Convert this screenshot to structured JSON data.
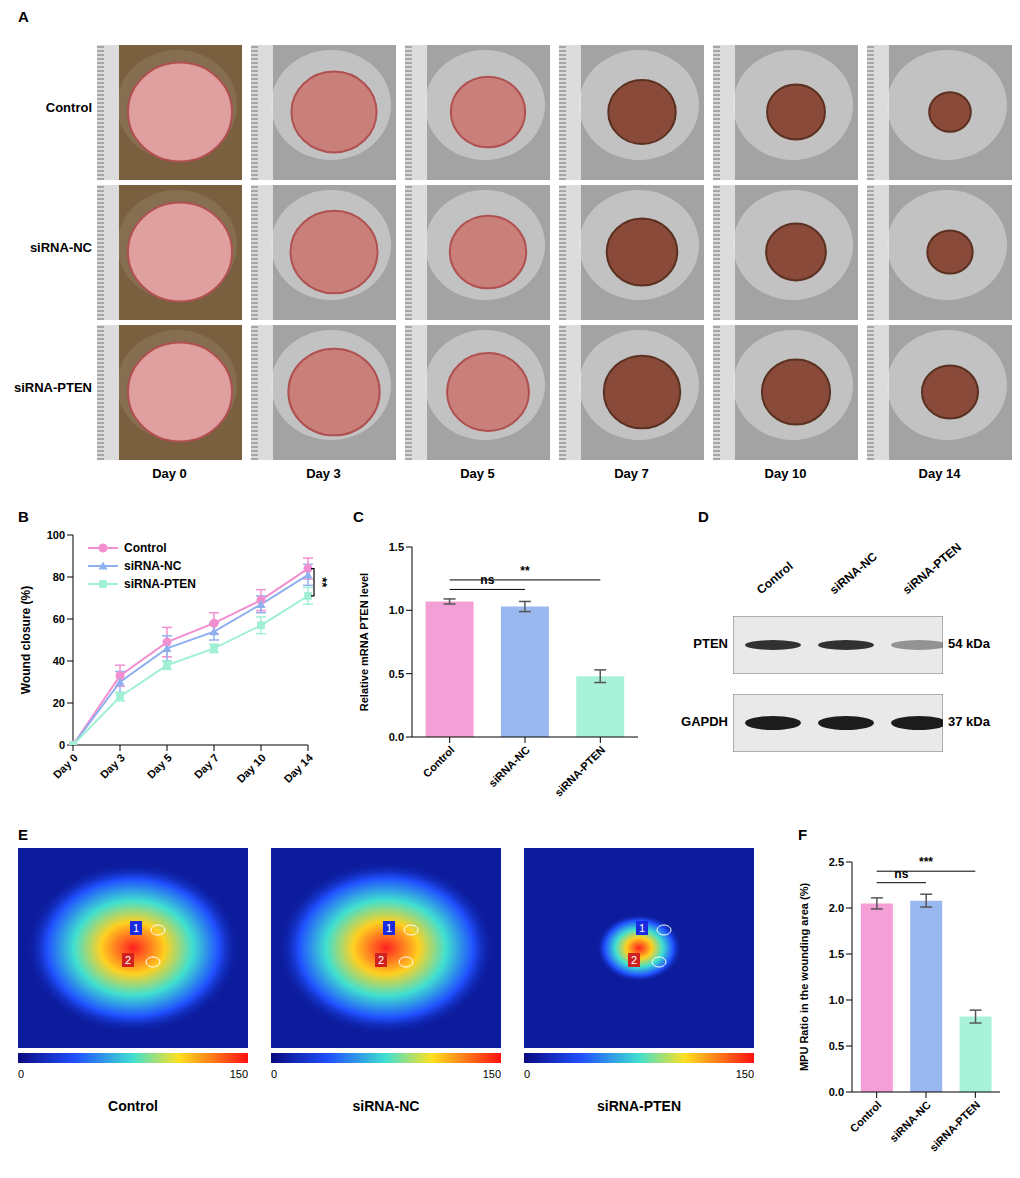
{
  "panel_labels": [
    "A",
    "B",
    "C",
    "D",
    "E",
    "F"
  ],
  "photo_grid": {
    "rows": [
      "Control",
      "siRNA-NC",
      "siRNA-PTEN"
    ],
    "columns": [
      "Day 0",
      "Day 3",
      "Day 5",
      "Day 7",
      "Day 10",
      "Day 14"
    ]
  },
  "chart_data": [
    {
      "type": "line",
      "categories": [
        "Day 0",
        "Day 3",
        "Day 5",
        "Day 7",
        "Day 10",
        "Day 14"
      ],
      "y_label": "Wound closure (%)",
      "ylim": [
        0,
        100
      ],
      "yticks": [
        0,
        20,
        40,
        60,
        80,
        100
      ],
      "legend": "upper left",
      "series": [
        {
          "name": "Control",
          "color": "#f28fd0",
          "marker": "circle",
          "values": [
            0,
            33,
            49,
            58,
            69,
            84
          ],
          "errors": [
            0,
            5,
            7,
            5,
            5,
            5
          ]
        },
        {
          "name": "siRNA-NC",
          "color": "#8fb0ee",
          "marker": "triangle",
          "values": [
            0,
            30,
            46,
            54,
            67,
            81
          ],
          "errors": [
            0,
            5,
            6,
            4,
            4,
            5
          ]
        },
        {
          "name": "siRNA-PTEN",
          "color": "#9ff0d4",
          "marker": "square",
          "values": [
            0,
            23,
            38,
            46,
            57,
            71
          ],
          "errors": [
            0,
            2,
            2,
            2,
            4,
            4
          ]
        }
      ],
      "annotations": [
        {
          "text": "**",
          "from": "Control",
          "to": "siRNA-PTEN"
        }
      ]
    },
    {
      "type": "bar",
      "categories": [
        "Control",
        "siRNA-NC",
        "siRNA-PTEN"
      ],
      "values": [
        1.07,
        1.03,
        0.48
      ],
      "errors": [
        0.02,
        0.04,
        0.05
      ],
      "colors": [
        "#f49fd6",
        "#9ab8f0",
        "#a9f2da"
      ],
      "y_label": "Relative mRNA PTEN level",
      "ylim": [
        0,
        1.5
      ],
      "yticks": [
        {
          "value": 0,
          "label": "0.0"
        },
        {
          "value": 0.5,
          "label": "0.5"
        },
        {
          "value": 1,
          "label": "1.0"
        },
        {
          "value": 1.5,
          "label": "1.5"
        }
      ],
      "annotations": [
        {
          "text": "ns",
          "from": "Control",
          "to": "siRNA-NC"
        },
        {
          "text": "**",
          "from": "Control",
          "to": "siRNA-PTEN"
        }
      ]
    },
    {
      "type": "bar",
      "categories": [
        "Control",
        "siRNA-NC",
        "siRNA-PTEN"
      ],
      "values": [
        2.05,
        2.08,
        0.82
      ],
      "errors": [
        0.06,
        0.07,
        0.07
      ],
      "colors": [
        "#f49fd6",
        "#9ab8f0",
        "#a9f2da"
      ],
      "y_label": "MPU Ratio in the wounding area (%)",
      "ylim": [
        0,
        2.5
      ],
      "yticks": [
        {
          "value": 0,
          "label": "0.0"
        },
        {
          "value": 0.5,
          "label": "0.5"
        },
        {
          "value": 1,
          "label": "1.0"
        },
        {
          "value": 1.5,
          "label": "1.5"
        },
        {
          "value": 2,
          "label": "2.0"
        },
        {
          "value": 2.5,
          "label": "2.5"
        }
      ],
      "annotations": [
        {
          "text": "ns",
          "from": "Control",
          "to": "siRNA-NC"
        },
        {
          "text": "***",
          "from": "Control",
          "to": "siRNA-PTEN"
        }
      ]
    }
  ],
  "western_blot": {
    "lanes": [
      "Control",
      "siRNA-NC",
      "siRNA-PTEN"
    ],
    "bands": [
      {
        "name": "PTEN",
        "size": "54 kDa",
        "intensity": [
          0.85,
          0.85,
          0.4
        ]
      },
      {
        "name": "GAPDH",
        "size": "37 kDa",
        "intensity": [
          0.95,
          0.95,
          0.95
        ]
      }
    ]
  },
  "perfusion_images": {
    "panels": [
      "Control",
      "siRNA-NC",
      "siRNA-PTEN"
    ],
    "roi_labels": [
      "1",
      "2"
    ],
    "colorbar": {
      "range": [
        0,
        150
      ],
      "ticks": [
        0,
        150
      ]
    }
  }
}
